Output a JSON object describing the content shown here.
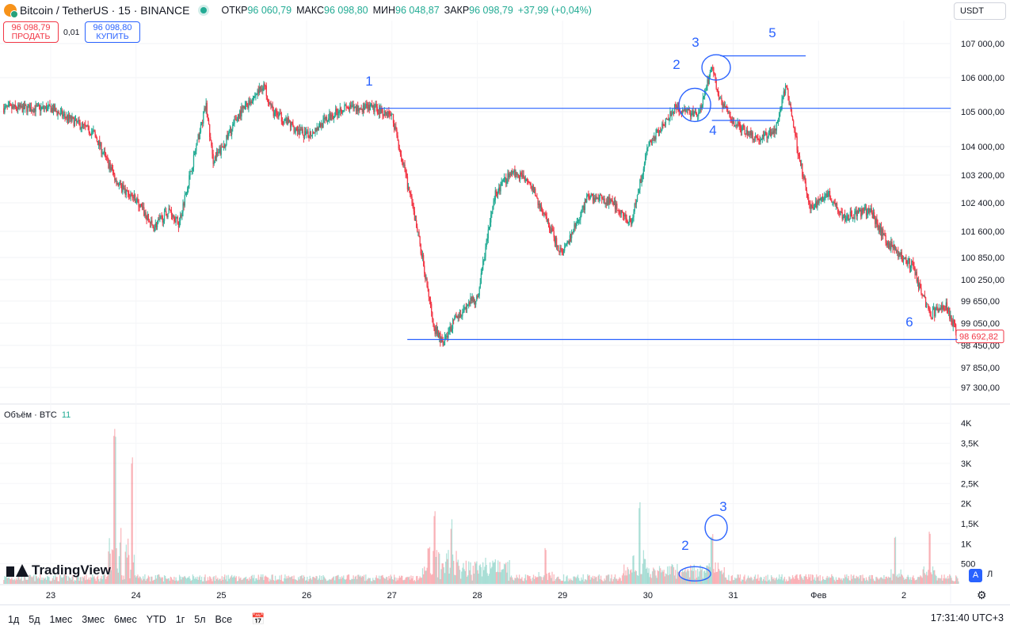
{
  "header": {
    "title": "Bitcoin / TetherUS · 15 · BINANCE",
    "ohlc": [
      {
        "k": "ОТКР",
        "v": "96 060,79"
      },
      {
        "k": "МАКС",
        "v": "96 098,80"
      },
      {
        "k": "МИН",
        "v": "96 048,87"
      },
      {
        "k": "ЗАКР",
        "v": "96 098,79"
      }
    ],
    "change": "+37,99 (+0,04%)",
    "sell_price": "96 098,79",
    "sell_label": "ПРОДАТЬ",
    "spread": "0,01",
    "buy_price": "96 098,80",
    "buy_label": "КУПИТЬ",
    "currency": "USDT"
  },
  "volume_panel": {
    "label": "Объём · BTC",
    "value": "11"
  },
  "logo_text": "TradingView",
  "badges": {
    "a": "A",
    "l": "Л"
  },
  "bottom_bar": {
    "ranges": [
      "1д",
      "5д",
      "1мес",
      "3мес",
      "6мес",
      "YTD",
      "1г",
      "5л",
      "Все"
    ],
    "clock": "17:31:40 UTC+3"
  },
  "colors": {
    "up": "#22ab94",
    "down": "#f23645",
    "annotation": "#2962ff"
  },
  "chart_data": {
    "type": "candlestick",
    "symbol": "Bitcoin / TetherUS",
    "interval": "15",
    "exchange": "BINANCE",
    "price_axis_ticks": [
      "107 000,00",
      "106 000,00",
      "105 000,00",
      "104 000,00",
      "103 200,00",
      "102 400,00",
      "101 600,00",
      "100 850,00",
      "100 250,00",
      "99 650,00",
      "99 050,00",
      "98 450,00",
      "97 850,00",
      "97 300,00"
    ],
    "last_price_label": "98 692,82",
    "volume_axis_ticks": [
      "4K",
      "3,5K",
      "3K",
      "2,5K",
      "2K",
      "1,5K",
      "1K",
      "500"
    ],
    "time_axis_ticks": [
      "23",
      "24",
      "25",
      "26",
      "27",
      "28",
      "29",
      "30",
      "31",
      "Фев",
      "2"
    ],
    "price_path_keypoints": [
      {
        "t": 0.0,
        "p": 105100
      },
      {
        "t": 0.5,
        "p": 104400
      },
      {
        "t": 0.8,
        "p": 102900
      },
      {
        "t": 1.0,
        "p": 102500
      },
      {
        "t": 1.2,
        "p": 101700
      },
      {
        "t": 1.4,
        "p": 102200
      },
      {
        "t": 1.5,
        "p": 101800
      },
      {
        "t": 1.82,
        "p": 105200
      },
      {
        "t": 1.9,
        "p": 103600
      },
      {
        "t": 2.0,
        "p": 103900
      },
      {
        "t": 2.2,
        "p": 104900
      },
      {
        "t": 2.5,
        "p": 105800
      },
      {
        "t": 2.6,
        "p": 105000
      },
      {
        "t": 3.0,
        "p": 104300
      },
      {
        "t": 3.4,
        "p": 105100
      },
      {
        "t": 3.8,
        "p": 105100
      },
      {
        "t": 4.0,
        "p": 104900
      },
      {
        "t": 4.13,
        "p": 103500
      },
      {
        "t": 4.3,
        "p": 101600
      },
      {
        "t": 4.5,
        "p": 98900
      },
      {
        "t": 4.6,
        "p": 98500
      },
      {
        "t": 4.75,
        "p": 99200
      },
      {
        "t": 4.9,
        "p": 99600
      },
      {
        "t": 5.0,
        "p": 99700
      },
      {
        "t": 5.2,
        "p": 102600
      },
      {
        "t": 5.4,
        "p": 103300
      },
      {
        "t": 5.6,
        "p": 103100
      },
      {
        "t": 5.75,
        "p": 102200
      },
      {
        "t": 6.0,
        "p": 100900
      },
      {
        "t": 6.3,
        "p": 102600
      },
      {
        "t": 6.6,
        "p": 102400
      },
      {
        "t": 6.8,
        "p": 101800
      },
      {
        "t": 7.0,
        "p": 104000
      },
      {
        "t": 7.3,
        "p": 105100
      },
      {
        "t": 7.6,
        "p": 104900
      },
      {
        "t": 7.75,
        "p": 106300
      },
      {
        "t": 7.85,
        "p": 105300
      },
      {
        "t": 8.0,
        "p": 104700
      },
      {
        "t": 8.3,
        "p": 104200
      },
      {
        "t": 8.5,
        "p": 104500
      },
      {
        "t": 8.62,
        "p": 105800
      },
      {
        "t": 8.75,
        "p": 104000
      },
      {
        "t": 8.9,
        "p": 102200
      },
      {
        "t": 9.1,
        "p": 102700
      },
      {
        "t": 9.3,
        "p": 102000
      },
      {
        "t": 9.6,
        "p": 102200
      },
      {
        "t": 9.8,
        "p": 101300
      },
      {
        "t": 10.1,
        "p": 100600
      },
      {
        "t": 10.3,
        "p": 99300
      },
      {
        "t": 10.5,
        "p": 99500
      },
      {
        "t": 10.65,
        "p": 98600
      }
    ],
    "volume_spikes": [
      {
        "t": 0.75,
        "v": 4000
      },
      {
        "t": 0.95,
        "v": 3300
      },
      {
        "t": 4.5,
        "v": 1700
      },
      {
        "t": 4.7,
        "v": 1300
      },
      {
        "t": 5.8,
        "v": 900
      },
      {
        "t": 6.9,
        "v": 1900
      },
      {
        "t": 7.75,
        "v": 1000
      },
      {
        "t": 9.9,
        "v": 1200
      },
      {
        "t": 10.3,
        "v": 1300
      }
    ],
    "annotations": [
      {
        "label": "1",
        "type": "horizontal_line",
        "price": 105100,
        "t_start": 3.85,
        "t_end": 10.55
      },
      {
        "label": "2",
        "type": "circle",
        "price": 105200,
        "t": 7.55
      },
      {
        "label": "3",
        "type": "circle",
        "price": 106300,
        "t": 7.8
      },
      {
        "label": "4",
        "type": "horizontal_line",
        "price": 104750,
        "t_start": 7.75,
        "t_end": 8.5
      },
      {
        "label": "5",
        "type": "horizontal_line",
        "price": 106640,
        "t_start": 7.85,
        "t_end": 8.85
      },
      {
        "label": "6",
        "type": "horizontal_line",
        "price": 98610,
        "t_start": 4.18,
        "t_end": 10.63
      },
      {
        "label": "2",
        "pane": "volume",
        "type": "circle",
        "volume": 250,
        "t": 7.55
      },
      {
        "label": "3",
        "pane": "volume",
        "type": "circle",
        "volume": 1400,
        "t": 7.8
      }
    ]
  }
}
